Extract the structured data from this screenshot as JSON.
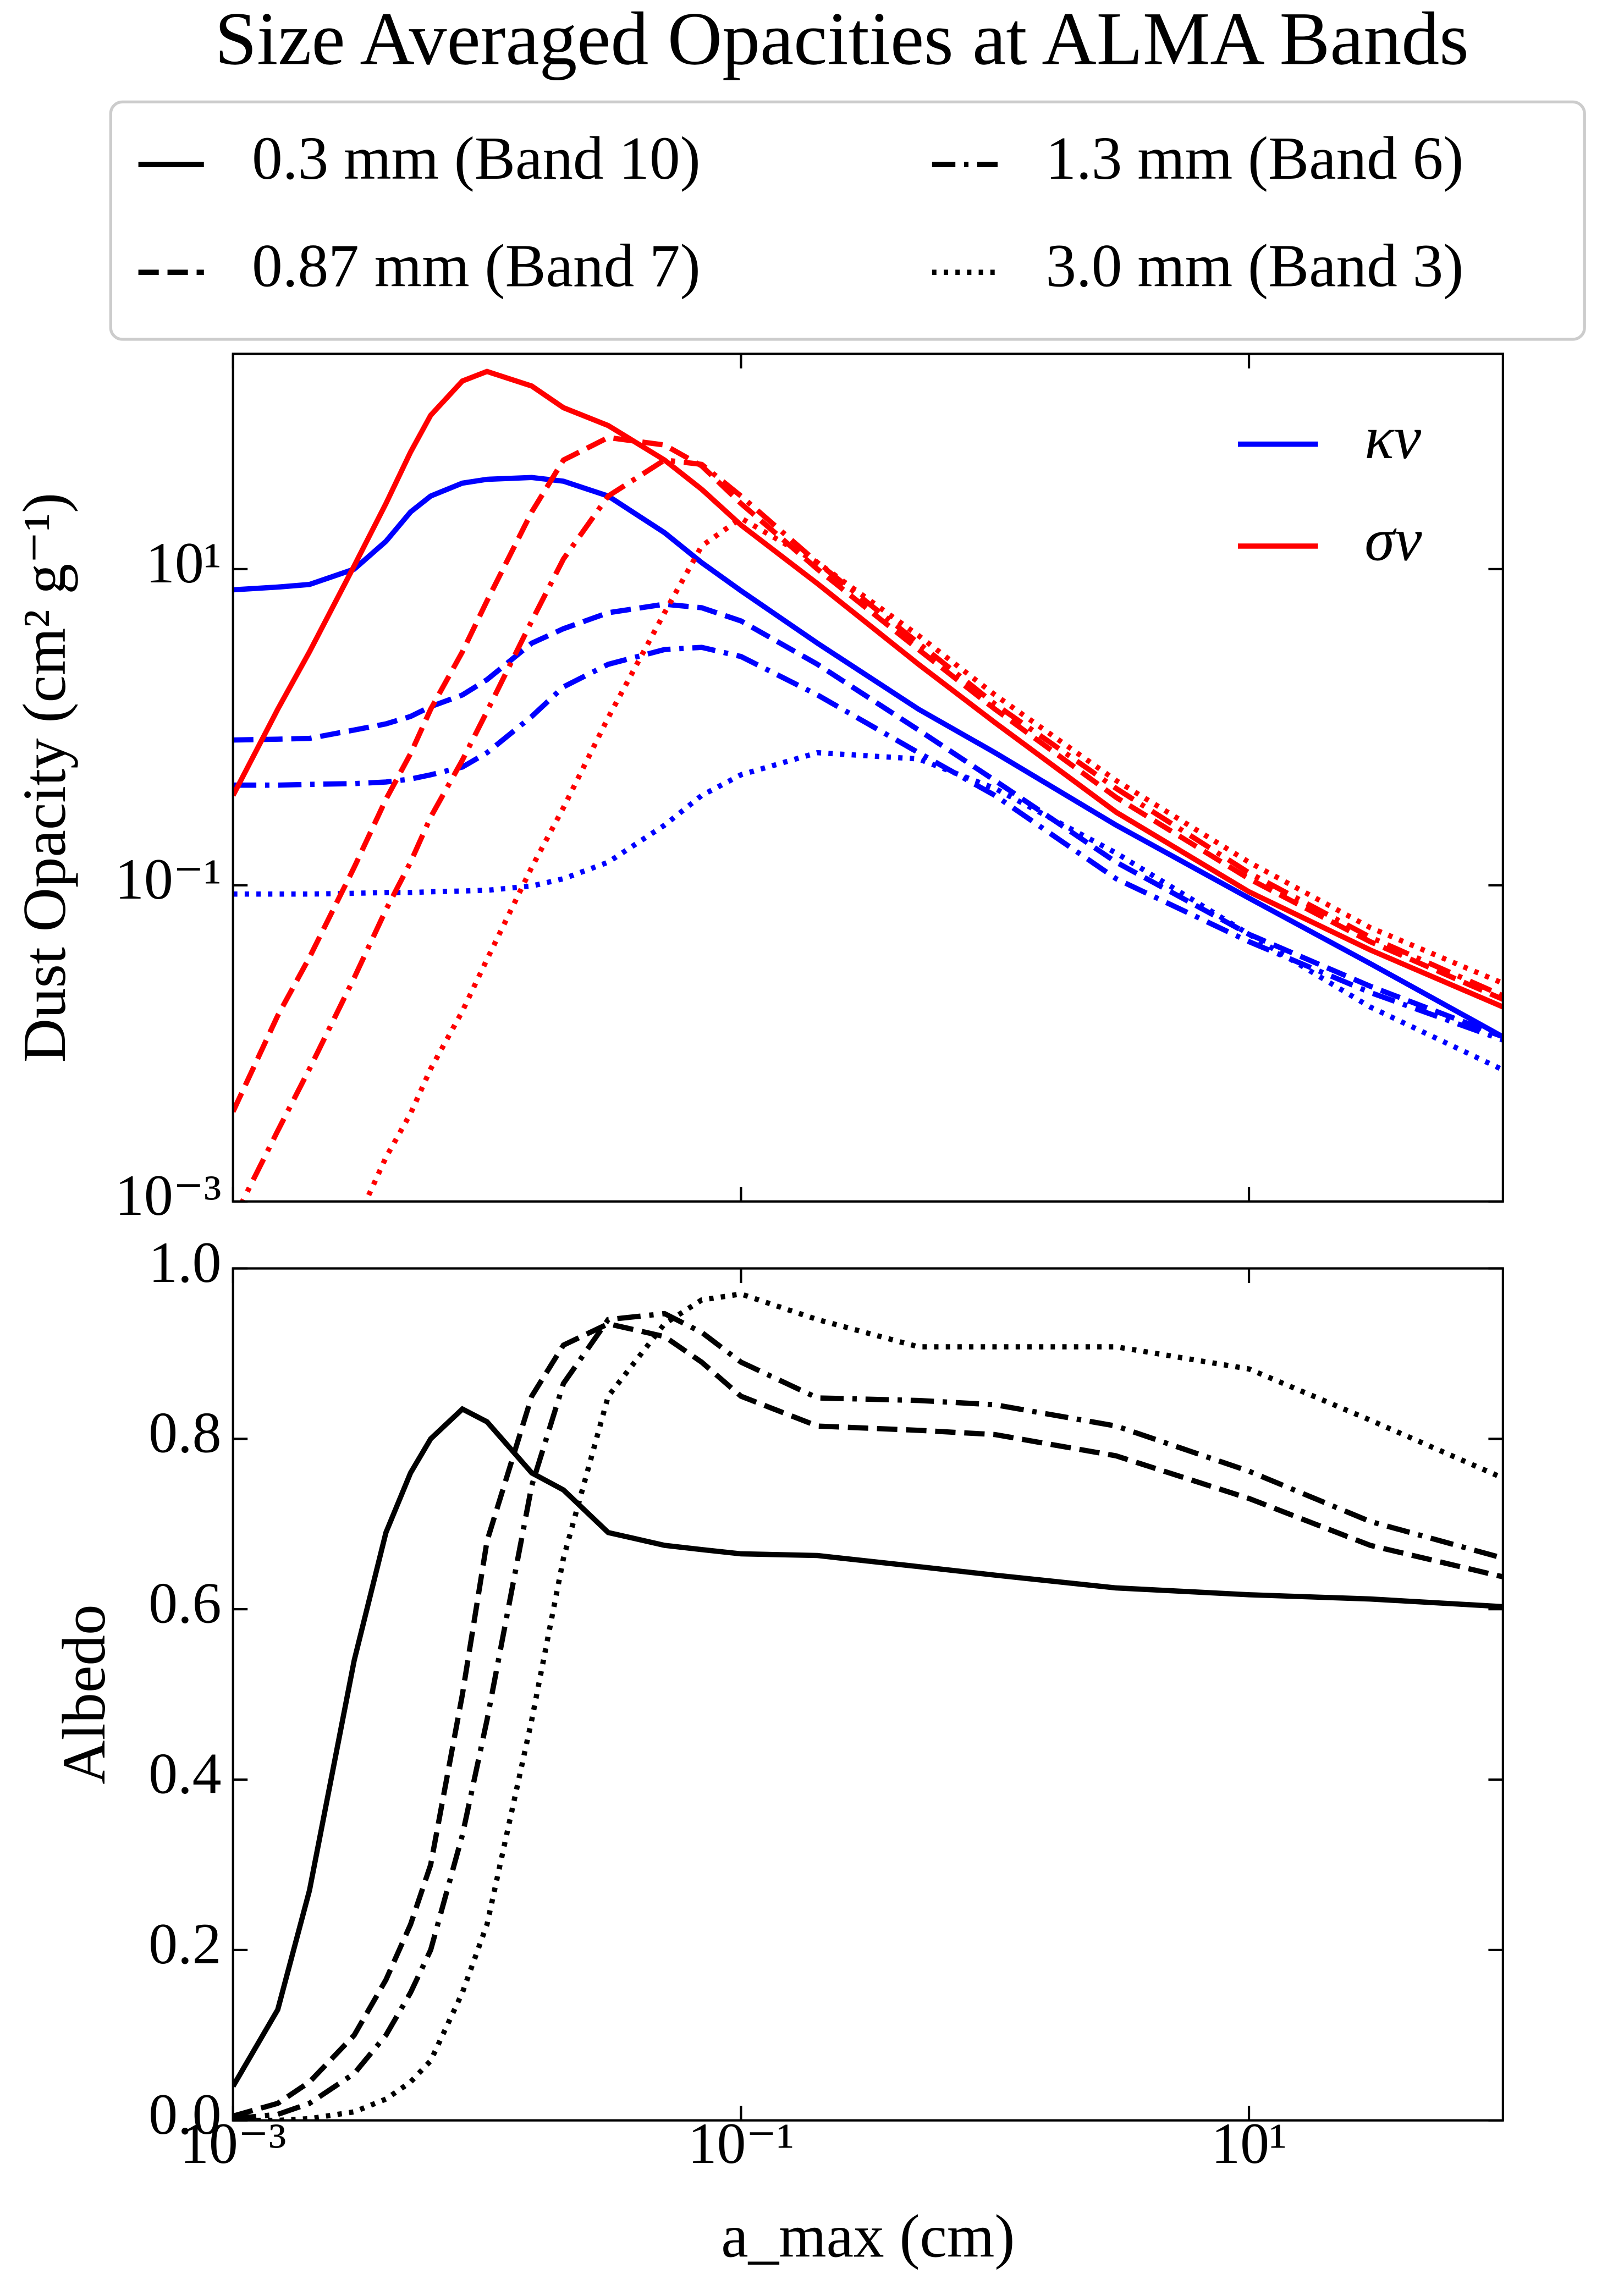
{
  "chart_data": [
    {
      "type": "line",
      "title": "Size Averaged Opacities at ALMA Bands",
      "ylabel": "Dust Opacity (cm² g⁻¹)",
      "xscale": "log",
      "yscale": "log",
      "x": [
        0.001,
        0.0015,
        0.002,
        0.003,
        0.004,
        0.005,
        0.006,
        0.008,
        0.01,
        0.015,
        0.02,
        0.03,
        0.05,
        0.07,
        0.1,
        0.2,
        0.5,
        1,
        3,
        10,
        30,
        100
      ],
      "xlim": [
        0.001,
        100
      ],
      "xticks": [
        0.001,
        0.1,
        10
      ],
      "ylim": [
        0.001,
        230
      ],
      "yticks": [
        {
          "value": 0.001,
          "label": "10⁻³"
        },
        {
          "value": 0.1,
          "label": "10⁻¹"
        },
        {
          "value": 10,
          "label": "10¹"
        }
      ],
      "legend": [
        {
          "name": "κν",
          "color": "#0000ff"
        },
        {
          "name": "σν",
          "color": "#ff0000"
        }
      ],
      "legend_loc": "upper right",
      "series": [
        {
          "color": "#0000ff",
          "style": "solid",
          "values": [
            7.4,
            7.7,
            8.0,
            10,
            15,
            23,
            29,
            35,
            37,
            38,
            36,
            29,
            17,
            11,
            7.3,
            3.4,
            1.3,
            0.69,
            0.24,
            0.083,
            0.032,
            0.011
          ]
        },
        {
          "color": "#0000ff",
          "style": "dashed",
          "values": [
            0.83,
            0.84,
            0.85,
            0.96,
            1.05,
            1.17,
            1.35,
            1.6,
            2.0,
            3.4,
            4.2,
            5.3,
            6.0,
            5.7,
            4.7,
            2.5,
            0.96,
            0.46,
            0.14,
            0.049,
            0.023,
            0.011
          ]
        },
        {
          "color": "#0000ff",
          "style": "dashdot",
          "values": [
            0.43,
            0.43,
            0.435,
            0.44,
            0.45,
            0.47,
            0.5,
            0.56,
            0.69,
            1.17,
            1.8,
            2.5,
            3.1,
            3.2,
            2.8,
            1.6,
            0.69,
            0.37,
            0.11,
            0.044,
            0.021,
            0.0105
          ]
        },
        {
          "color": "#0000ff",
          "style": "dotted",
          "values": [
            0.088,
            0.088,
            0.088,
            0.089,
            0.09,
            0.09,
            0.091,
            0.092,
            0.093,
            0.099,
            0.11,
            0.14,
            0.24,
            0.37,
            0.5,
            0.69,
            0.63,
            0.41,
            0.16,
            0.049,
            0.017,
            0.0068
          ]
        },
        {
          "color": "#ff0000",
          "style": "solid",
          "values": [
            0.37,
            1.3,
            3.0,
            10.5,
            26,
            55,
            94,
            155,
            178,
            144,
            105,
            81,
            49,
            32,
            19,
            8.1,
            2.5,
            1.07,
            0.29,
            0.091,
            0.039,
            0.017
          ]
        },
        {
          "color": "#ff0000",
          "style": "dashed",
          "values": [
            0.0037,
            0.015,
            0.035,
            0.13,
            0.35,
            0.68,
            1.3,
            3.0,
            6.3,
            23,
            49,
            68,
            61,
            45,
            26,
            10,
            3.1,
            1.3,
            0.36,
            0.11,
            0.044,
            0.019
          ]
        },
        {
          "color": "#ff0000",
          "style": "dashdot",
          "values": [
            0.00076,
            0.0028,
            0.0069,
            0.026,
            0.07,
            0.14,
            0.27,
            0.62,
            1.26,
            4.7,
            11.6,
            29,
            49,
            46,
            29,
            11,
            3.4,
            1.4,
            0.41,
            0.12,
            0.047,
            0.02
          ]
        },
        {
          "color": "#ff0000",
          "style": "dotted",
          "values": [
            null,
            null,
            null,
            0.00069,
            0.0019,
            0.0036,
            0.0069,
            0.016,
            0.034,
            0.13,
            0.31,
            1.15,
            5.3,
            14,
            21,
            11,
            3.8,
            1.6,
            0.46,
            0.14,
            0.054,
            0.024
          ]
        }
      ]
    },
    {
      "type": "line",
      "xlabel": "a_max (cm)",
      "ylabel": "Albedo",
      "xscale": "log",
      "yscale": "linear",
      "x": [
        0.001,
        0.0015,
        0.002,
        0.003,
        0.004,
        0.005,
        0.006,
        0.008,
        0.01,
        0.015,
        0.02,
        0.03,
        0.05,
        0.07,
        0.1,
        0.2,
        0.5,
        1,
        3,
        10,
        30,
        100
      ],
      "xlim": [
        0.001,
        100
      ],
      "xticks": [
        {
          "value": 0.001,
          "label": "10⁻³"
        },
        {
          "value": 0.1,
          "label": "10⁻¹"
        },
        {
          "value": 10,
          "label": "10¹"
        }
      ],
      "ylim": [
        0,
        1
      ],
      "yticks": [
        {
          "value": 0,
          "label": "0.0"
        },
        0.2,
        0.4,
        0.6,
        0.8,
        {
          "value": 1,
          "label": "1.0"
        }
      ],
      "legend_loc": "above",
      "series": [
        {
          "name": "0.3 mm (Band 10)",
          "color": "#000000",
          "style": "solid",
          "values": [
            0.04,
            0.13,
            0.27,
            0.54,
            0.69,
            0.76,
            0.8,
            0.835,
            0.82,
            0.76,
            0.74,
            0.69,
            0.675,
            0.67,
            0.665,
            0.663,
            0.65,
            0.64,
            0.625,
            0.617,
            0.612,
            0.603
          ]
        },
        {
          "name": "0.87 mm (Band 7)",
          "color": "#000000",
          "style": "dashed",
          "values": [
            0.005,
            0.02,
            0.045,
            0.1,
            0.165,
            0.23,
            0.3,
            0.5,
            0.68,
            0.85,
            0.91,
            0.935,
            0.92,
            0.89,
            0.85,
            0.815,
            0.81,
            0.805,
            0.78,
            0.73,
            0.675,
            0.638
          ]
        },
        {
          "name": "1.3 mm (Band 6)",
          "color": "#000000",
          "style": "dashdot",
          "values": [
            0.002,
            0.007,
            0.02,
            0.055,
            0.1,
            0.15,
            0.2,
            0.335,
            0.47,
            0.745,
            0.865,
            0.94,
            0.947,
            0.925,
            0.89,
            0.848,
            0.845,
            0.84,
            0.815,
            0.762,
            0.703,
            0.66
          ]
        },
        {
          "name": "3.0 mm (Band 3)",
          "color": "#000000",
          "style": "dotted",
          "values": [
            0.0,
            0.0,
            0.002,
            0.01,
            0.025,
            0.045,
            0.07,
            0.15,
            0.23,
            0.47,
            0.66,
            0.85,
            0.935,
            0.963,
            0.97,
            0.94,
            0.908,
            0.908,
            0.908,
            0.882,
            0.822,
            0.754
          ]
        }
      ]
    }
  ]
}
